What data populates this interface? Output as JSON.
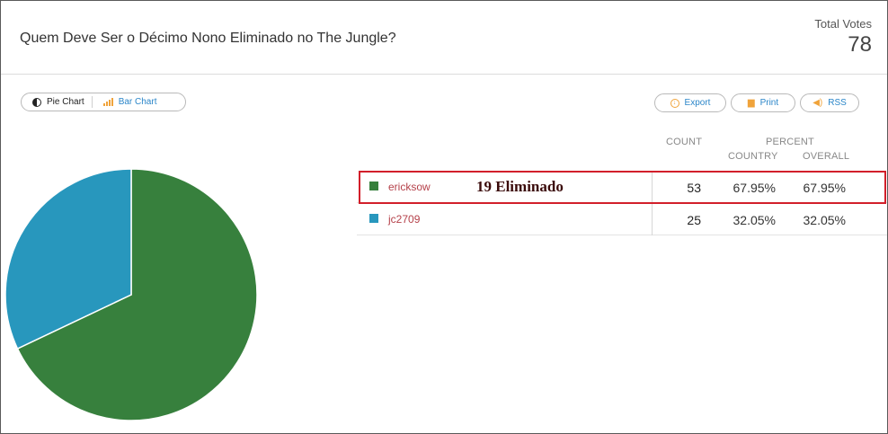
{
  "poll": {
    "title": "Quem Deve Ser o Décimo Nono Eliminado no The Jungle?",
    "total_votes_label": "Total Votes",
    "total_votes": "78"
  },
  "toggle": {
    "pie_label": "Pie Chart",
    "bar_label": "Bar Chart",
    "active": "pie"
  },
  "actions": {
    "export_label": "Export",
    "print_label": "Print",
    "rss_label": "RSS"
  },
  "table": {
    "count_header": "COUNT",
    "percent_header": "PERCENT",
    "country_header": "COUNTRY",
    "overall_header": "OVERALL",
    "rows": [
      {
        "name": "ericksow",
        "count": "53",
        "country": "67.95%",
        "overall": "67.95%",
        "color": "#37803d",
        "note": "19 Eliminado",
        "highlighted": true
      },
      {
        "name": "jc2709",
        "count": "25",
        "country": "32.05%",
        "overall": "32.05%",
        "color": "#2897bd",
        "note": "",
        "highlighted": false
      }
    ]
  },
  "chart_data": {
    "type": "pie",
    "categories": [
      "ericksow",
      "jc2709"
    ],
    "values": [
      53,
      25
    ],
    "colors": [
      "#37803d",
      "#2897bd"
    ],
    "legend": "none"
  },
  "colors": {
    "accent": "#2b86c9",
    "highlight_border": "#d21f2a",
    "name_text": "#b5414a",
    "icon_orange": "#f0a33a"
  }
}
